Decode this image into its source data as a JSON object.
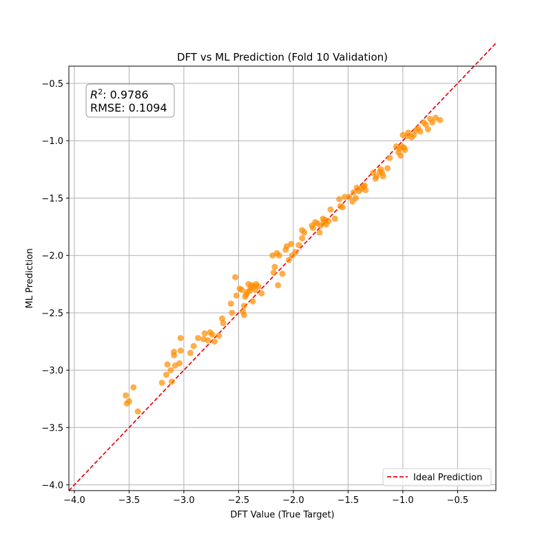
{
  "chart_data": {
    "type": "scatter",
    "title": "DFT vs ML Prediction (Fold 10 Validation)",
    "xlabel": "DFT Value (True Target)",
    "ylabel": "ML Prediction",
    "xlim": [
      -4.05,
      -0.15
    ],
    "ylim": [
      -4.05,
      -0.35
    ],
    "xticks": [
      -4.0,
      -3.5,
      -3.0,
      -2.5,
      -2.0,
      -1.5,
      -1.0,
      -0.5
    ],
    "xtick_labels": [
      "−4.0",
      "−3.5",
      "−3.0",
      "−2.5",
      "−2.0",
      "−1.5",
      "−1.0",
      "−0.5"
    ],
    "yticks": [
      -4.0,
      -3.5,
      -3.0,
      -2.5,
      -2.0,
      -1.5,
      -1.0,
      -0.5
    ],
    "ytick_labels": [
      "−4.0",
      "−3.5",
      "−3.0",
      "−2.5",
      "−2.0",
      "−1.5",
      "−1.0",
      "−0.5"
    ],
    "grid": true,
    "legend_placement": "lower-right",
    "stats": {
      "r2_label": "R",
      "r2_exp": "2",
      "r2_value": ": 0.9786",
      "rmse": "RMSE: 0.1094"
    },
    "series": [
      {
        "type": "scatter",
        "color": "#ff8c00",
        "x": [
          -3.53,
          -3.52,
          -3.5,
          -3.46,
          -3.42,
          -3.2,
          -3.16,
          -3.15,
          -3.12,
          -3.11,
          -3.09,
          -3.09,
          -3.08,
          -3.04,
          -3.03,
          -3.03,
          -2.94,
          -2.91,
          -2.87,
          -2.82,
          -2.81,
          -2.78,
          -2.76,
          -2.74,
          -2.72,
          -2.68,
          -2.65,
          -2.64,
          -2.57,
          -2.56,
          -2.53,
          -2.52,
          -2.49,
          -2.47,
          -2.46,
          -2.45,
          -2.45,
          -2.44,
          -2.43,
          -2.42,
          -2.41,
          -2.4,
          -2.39,
          -2.38,
          -2.37,
          -2.36,
          -2.35,
          -2.34,
          -2.32,
          -2.29,
          -2.19,
          -2.18,
          -2.17,
          -2.15,
          -2.14,
          -2.13,
          -2.1,
          -2.07,
          -2.06,
          -2.04,
          -2.02,
          -2.01,
          -1.98,
          -1.95,
          -1.92,
          -1.92,
          -1.9,
          -1.83,
          -1.82,
          -1.8,
          -1.78,
          -1.76,
          -1.75,
          -1.73,
          -1.72,
          -1.71,
          -1.7,
          -1.68,
          -1.66,
          -1.62,
          -1.58,
          -1.57,
          -1.55,
          -1.53,
          -1.49,
          -1.46,
          -1.45,
          -1.43,
          -1.42,
          -1.4,
          -1.38,
          -1.36,
          -1.35,
          -1.34,
          -1.27,
          -1.25,
          -1.24,
          -1.21,
          -1.2,
          -1.19,
          -1.18,
          -1.14,
          -1.12,
          -1.06,
          -1.04,
          -1.03,
          -1.02,
          -1.01,
          -1.0,
          -0.99,
          -0.98,
          -0.96,
          -0.95,
          -0.92,
          -0.9,
          -0.88,
          -0.86,
          -0.84,
          -0.81,
          -0.79,
          -0.77,
          -0.75,
          -0.73,
          -0.7,
          -0.66
        ],
        "y": [
          -3.22,
          -3.29,
          -3.27,
          -3.15,
          -3.36,
          -3.11,
          -3.04,
          -2.95,
          -3.0,
          -3.1,
          -2.87,
          -2.84,
          -2.96,
          -2.94,
          -2.72,
          -2.83,
          -2.85,
          -2.79,
          -2.72,
          -2.73,
          -2.68,
          -2.74,
          -2.67,
          -2.69,
          -2.75,
          -2.7,
          -2.55,
          -2.59,
          -2.42,
          -2.5,
          -2.19,
          -2.35,
          -2.29,
          -2.3,
          -2.49,
          -2.44,
          -2.52,
          -2.36,
          -2.34,
          -2.32,
          -2.25,
          -2.31,
          -2.28,
          -2.26,
          -2.4,
          -2.27,
          -2.3,
          -2.25,
          -2.27,
          -2.33,
          -2.0,
          -2.15,
          -2.1,
          -1.98,
          -2.26,
          -2.0,
          -2.16,
          -1.95,
          -1.92,
          -2.04,
          -1.9,
          -2.0,
          -1.97,
          -1.91,
          -1.85,
          -1.78,
          -1.8,
          -1.74,
          -1.76,
          -1.71,
          -1.72,
          -1.8,
          -1.74,
          -1.68,
          -1.71,
          -1.69,
          -1.73,
          -1.7,
          -1.6,
          -1.68,
          -1.51,
          -1.57,
          -1.58,
          -1.49,
          -1.49,
          -1.53,
          -1.45,
          -1.5,
          -1.41,
          -1.44,
          -1.42,
          -1.4,
          -1.39,
          -1.43,
          -1.28,
          -1.33,
          -1.31,
          -1.27,
          -1.25,
          -1.28,
          -1.31,
          -1.24,
          -1.15,
          -1.05,
          -1.1,
          -1.07,
          -1.13,
          -1.05,
          -0.95,
          -1.06,
          -1.08,
          -0.96,
          -0.93,
          -0.97,
          -0.95,
          -0.91,
          -0.89,
          -0.92,
          -0.84,
          -0.86,
          -0.9,
          -0.81,
          -0.84,
          -0.8,
          -0.82
        ]
      },
      {
        "type": "line",
        "name": "Ideal Prediction",
        "color": "#e8000b",
        "style": "dashed",
        "x": [
          -4.05,
          -0.15
        ],
        "y": [
          -4.05,
          -0.15
        ]
      }
    ]
  }
}
